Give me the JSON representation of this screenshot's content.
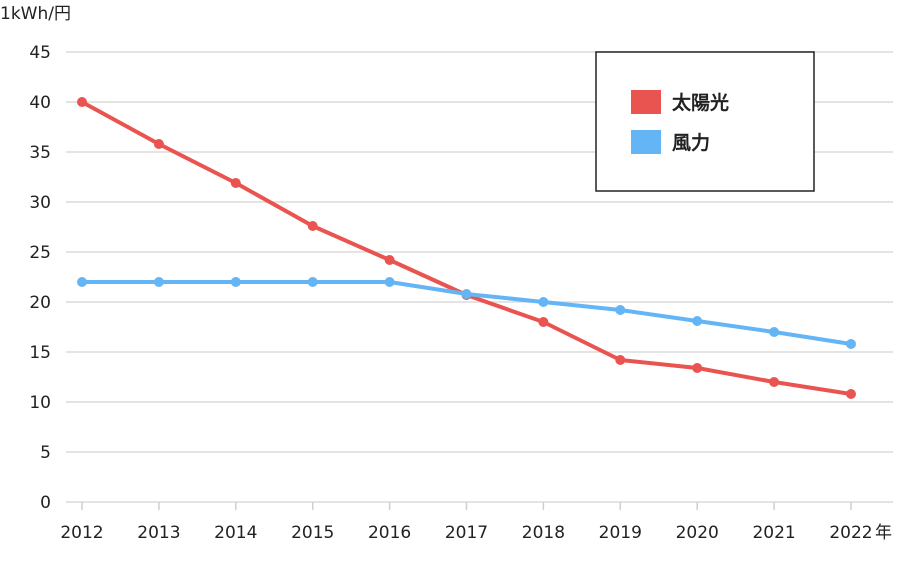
{
  "chart_data": {
    "type": "line",
    "title": "",
    "ylabel": "1kWh/円",
    "xlabel": "",
    "x_unit_suffix": "年",
    "categories": [
      "2012",
      "2013",
      "2014",
      "2015",
      "2016",
      "2017",
      "2018",
      "2019",
      "2020",
      "2021",
      "2022"
    ],
    "ylim": [
      0,
      45
    ],
    "yticks": [
      0,
      5,
      10,
      15,
      20,
      25,
      30,
      35,
      40,
      45
    ],
    "grid": true,
    "legend_position": "top-right",
    "series": [
      {
        "name": "太陽光",
        "color": "#ea5450",
        "values": [
          40.0,
          35.8,
          31.9,
          27.6,
          24.2,
          20.7,
          18.0,
          14.2,
          13.4,
          12.0,
          10.8
        ]
      },
      {
        "name": "風力",
        "color": "#64b5f6",
        "values": [
          22.0,
          22.0,
          22.0,
          22.0,
          22.0,
          20.8,
          20.0,
          19.2,
          18.1,
          17.0,
          15.8
        ]
      }
    ]
  }
}
